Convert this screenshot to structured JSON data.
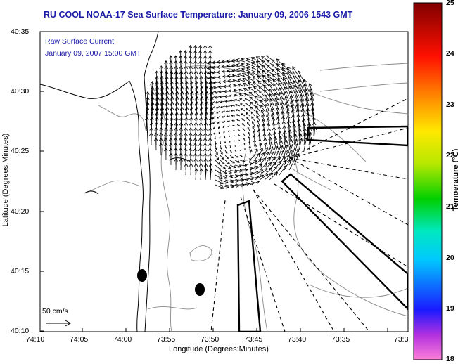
{
  "title": "RU COOL  NOAA-17  Sea Surface Temperature:  January 09, 2006 1543 GMT",
  "annotation": {
    "line1": "Raw Surface Current:",
    "line2": "January 09, 2007 15:00 GMT"
  },
  "axes": {
    "xlabel": "Longitude (Degrees:Minutes)",
    "ylabel": "Latitude (Degrees:Minutes)",
    "x_ticks": [
      "74:10",
      "74:05",
      "74:00",
      "73:55",
      "73:50",
      "73:45",
      "73:40",
      "73:35",
      "73:3"
    ],
    "y_ticks": [
      "40:35",
      "40:30",
      "40:25",
      "40:20",
      "40:15",
      "40:10"
    ]
  },
  "colorbar": {
    "label": "Temperature (°C)",
    "ticks": [
      "25",
      "24",
      "23",
      "22",
      "21",
      "20",
      "19",
      "18"
    ],
    "min": 18,
    "max": 25
  },
  "scale_label": "50 cm/s",
  "colors": {
    "title": "#1a1aa8",
    "coast": "#000000",
    "contour": "#888888"
  }
}
